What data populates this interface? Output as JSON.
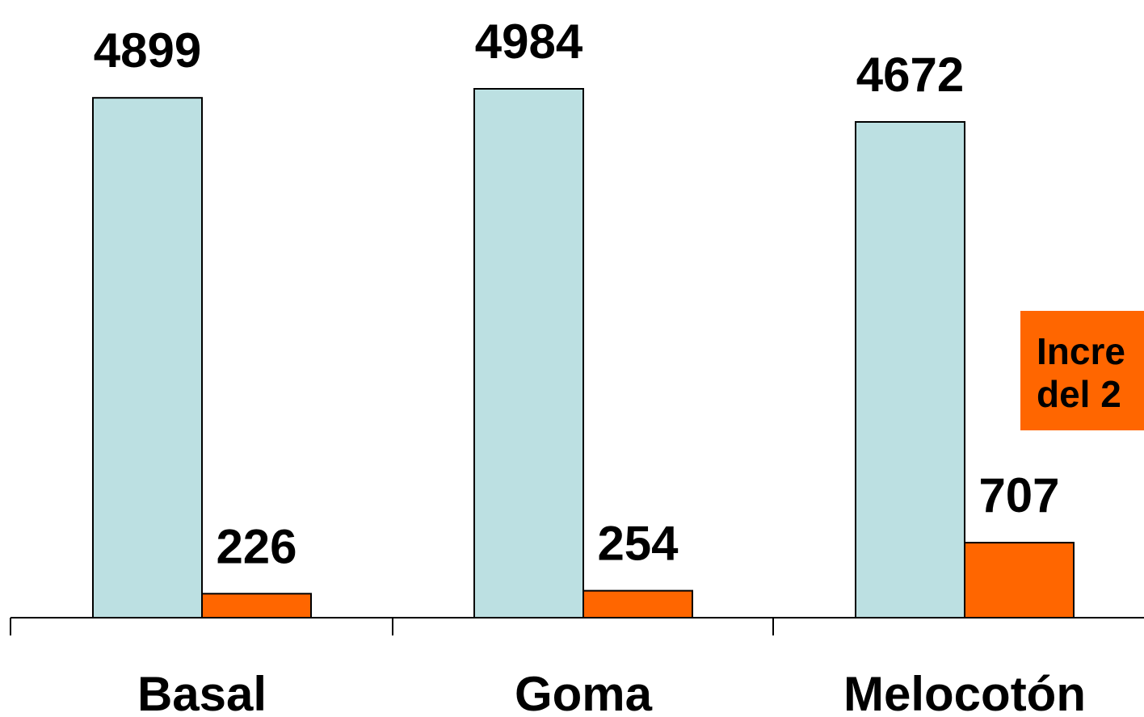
{
  "chart_data": {
    "type": "bar",
    "categories": [
      "Basal",
      "Goma",
      "Melocotón"
    ],
    "series": [
      {
        "values": [
          4899,
          4984,
          4672
        ],
        "color": "#bce0e2"
      },
      {
        "values": [
          226,
          254,
          707
        ],
        "color": "#ff6600"
      }
    ],
    "data_labels": [
      [
        "4899",
        "4984",
        "4672"
      ],
      [
        "226",
        "254",
        "707"
      ]
    ],
    "ylim": [
      0,
      5000
    ],
    "grid": false,
    "annotation": {
      "color": "#ff6600",
      "lines": [
        "Incre",
        "del 2"
      ]
    }
  }
}
